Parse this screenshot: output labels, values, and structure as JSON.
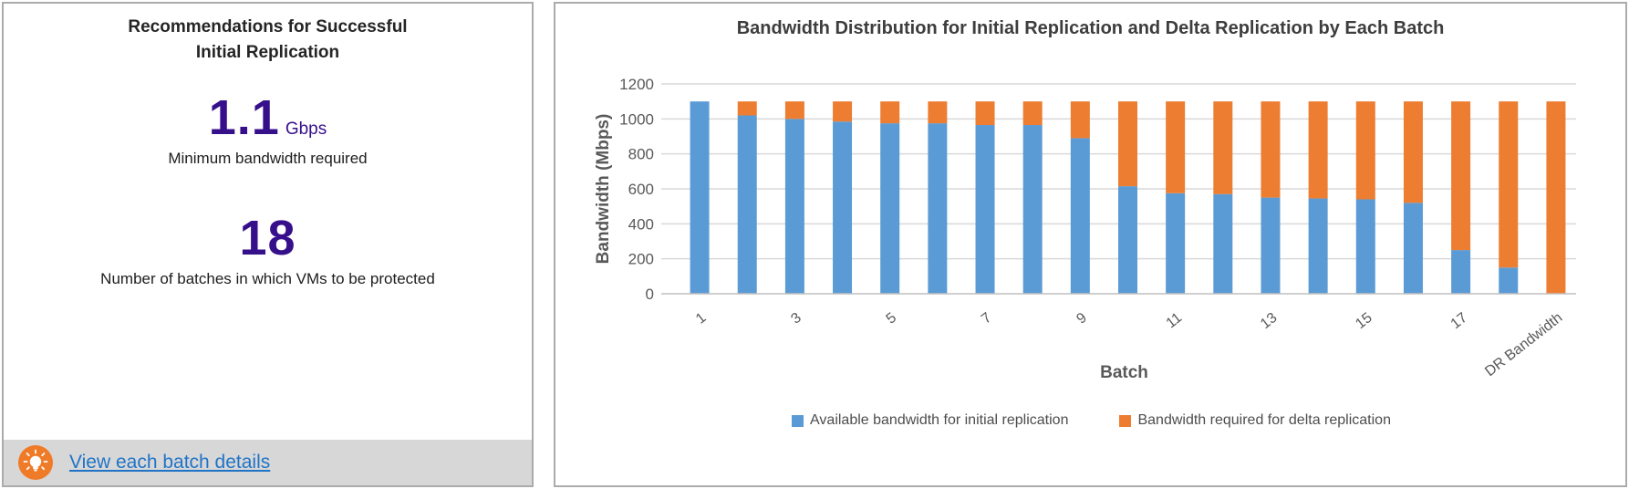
{
  "left_panel": {
    "title_line1": "Recommendations for Successful",
    "title_line2": "Initial Replication",
    "metric1_value": "1.1",
    "metric1_unit": "Gbps",
    "metric1_caption": "Minimum bandwidth required",
    "metric2_value": "18",
    "metric2_caption": "Number of batches in which VMs to be protected",
    "link_label": "View each batch details",
    "icon": "lightbulb-icon",
    "icon_color": "#ef7b28",
    "footer_bg": "#d7d7d7",
    "accent_purple": "#36108b",
    "link_color": "#2074c7"
  },
  "chart_data": {
    "type": "bar",
    "stacked": true,
    "title": "Bandwidth Distribution for Initial Replication and Delta Replication by Each Batch",
    "xlabel": "Batch",
    "ylabel": "Bandwidth (Mbps)",
    "ylim": [
      0,
      1200
    ],
    "y_ticks": [
      0,
      200,
      400,
      600,
      800,
      1000,
      1200
    ],
    "grid": true,
    "legend_position": "bottom",
    "categories": [
      "1",
      "2",
      "3",
      "4",
      "5",
      "6",
      "7",
      "8",
      "9",
      "10",
      "11",
      "12",
      "13",
      "14",
      "15",
      "16",
      "17",
      "18",
      "DR Bandwidth"
    ],
    "x_tick_labels_shown": [
      "1",
      "3",
      "5",
      "7",
      "9",
      "11",
      "13",
      "15",
      "17",
      "DR Bandwidth"
    ],
    "series": [
      {
        "name": "Available bandwidth for initial replication",
        "color": "#5b9bd5",
        "values": [
          1100,
          1020,
          1000,
          985,
          975,
          975,
          965,
          965,
          890,
          615,
          575,
          570,
          550,
          545,
          540,
          520,
          250,
          150,
          0
        ]
      },
      {
        "name": "Bandwidth required for delta replication",
        "color": "#ed7d31",
        "values": [
          0,
          80,
          100,
          115,
          125,
          125,
          135,
          135,
          210,
          485,
          525,
          530,
          550,
          555,
          560,
          580,
          850,
          950,
          1100
        ]
      }
    ],
    "gridline_color": "#d9d9d9",
    "axis_line_color": "#bfbfbf",
    "tick_text_color": "#595959"
  }
}
